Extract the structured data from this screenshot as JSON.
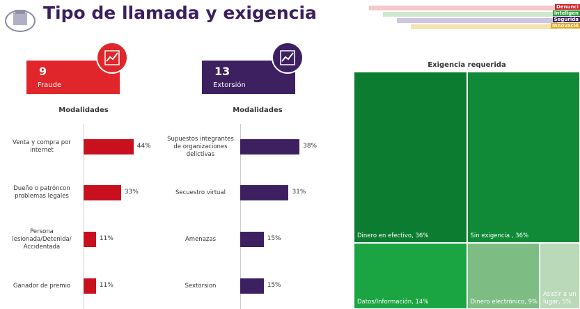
{
  "header": {
    "title": "Tipo de llamada y exigencia",
    "brand": [
      "Denunci",
      "Inteligen",
      "Segurida",
      "Innovació"
    ]
  },
  "kpis": [
    {
      "value": 9,
      "label": "Fraude",
      "color": "#e0262a"
    },
    {
      "value": 13,
      "label": "Extorsión",
      "color": "#3d2060"
    }
  ],
  "chart_data": [
    {
      "type": "bar",
      "title": "Modalidades",
      "color": "#c8101e",
      "categories": [
        "Venta y compra por internet",
        "Dueño o patróncon problemas legales",
        "Persona lesionada/Detenida/ Accidentada",
        "Ganador de premio"
      ],
      "values": [
        44,
        33,
        11,
        11
      ],
      "value_labels": [
        "44%",
        "33%",
        "11%",
        "11%"
      ]
    },
    {
      "type": "bar",
      "title": "Modalidades",
      "color": "#3d2060",
      "categories": [
        "Supuestos integrantes de organizaciones delictivas",
        "Secuestro virtual",
        "Amenazas",
        "Sextorsion"
      ],
      "values": [
        38,
        31,
        15,
        15
      ],
      "value_labels": [
        "38%",
        "31%",
        "15%",
        "15%"
      ]
    },
    {
      "type": "treemap",
      "title": "Exigencia requerida",
      "values": [
        36,
        36,
        14,
        9,
        5
      ],
      "value_labels": [
        "Dinero en efectivo, 36%",
        "Sin exigencia , 36%",
        "Datos/Información, 14%",
        "Dinero electrónico, 9%",
        "Asistir a un lugar, 5%"
      ],
      "colors": [
        "#0c7d30",
        "#108a36",
        "#1ba542",
        "#7dbd84",
        "#b9d9b8"
      ]
    }
  ]
}
